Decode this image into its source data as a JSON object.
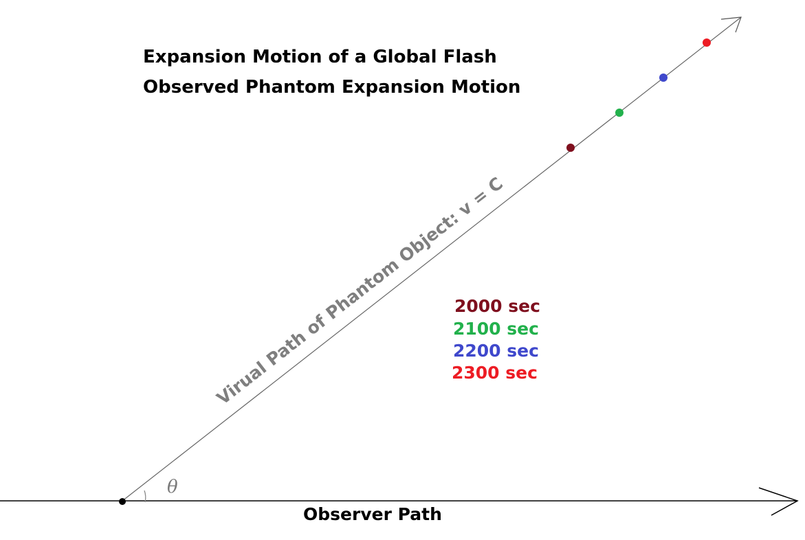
{
  "title": {
    "line1": "Expansion Motion of a Global Flash",
    "line2": "Observed Phantom Expansion Motion"
  },
  "observer_path": {
    "label": "Observer Path"
  },
  "virtual_path": {
    "label": "Virual Path of Phantom Object: v = C"
  },
  "angle": {
    "symbol": "θ"
  },
  "markers": [
    {
      "label": "2000 sec",
      "color": "#7f0f1e"
    },
    {
      "label": "2100 sec",
      "color": "#22b14c"
    },
    {
      "label": "2200 sec",
      "color": "#3f48cc"
    },
    {
      "label": "2300 sec",
      "color": "#ed1c24"
    }
  ],
  "colors": {
    "origin_dot": "#000000",
    "axis_line": "#000000",
    "path_line": "#666666",
    "path_label": "#7f7f7f"
  }
}
